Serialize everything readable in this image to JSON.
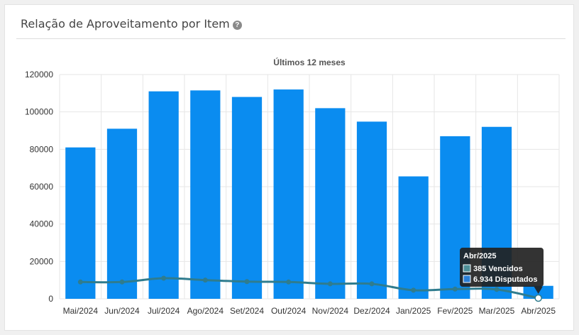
{
  "card": {
    "title": "Relação de Aproveitamento por Item",
    "help_icon": "?"
  },
  "colors": {
    "bar": "#0a8cf0",
    "line": "#2f7c8e",
    "grid": "#e6e6e6",
    "tooltip_bg": "#222222",
    "swatch_vencidos": "#4e8f98",
    "swatch_disputados": "#2a7fd6"
  },
  "chart_data": {
    "type": "bar",
    "title": "Últimos 12 meses",
    "categories": [
      "Mai/2024",
      "Jun/2024",
      "Jul/2024",
      "Ago/2024",
      "Set/2024",
      "Out/2024",
      "Nov/2024",
      "Dez/2024",
      "Jan/2025",
      "Fev/2025",
      "Mar/2025",
      "Abr/2025"
    ],
    "series": [
      {
        "name": "Disputados",
        "type": "bar",
        "values": [
          81000,
          91000,
          111000,
          111500,
          108000,
          112000,
          102000,
          94800,
          65500,
          87000,
          92000,
          6934
        ]
      },
      {
        "name": "Vencidos",
        "type": "line",
        "values": [
          9000,
          9000,
          11000,
          10000,
          9200,
          9000,
          8000,
          8000,
          4600,
          5200,
          5000,
          385
        ]
      }
    ],
    "ylim": [
      0,
      120000
    ],
    "yticks": [
      "0",
      "20000",
      "40000",
      "60000",
      "80000",
      "100000",
      "120000"
    ],
    "grid": true,
    "tooltip": {
      "title": "Abr/2025",
      "line1": "385 Vencidos",
      "line2": "6.934 Disputados"
    }
  }
}
